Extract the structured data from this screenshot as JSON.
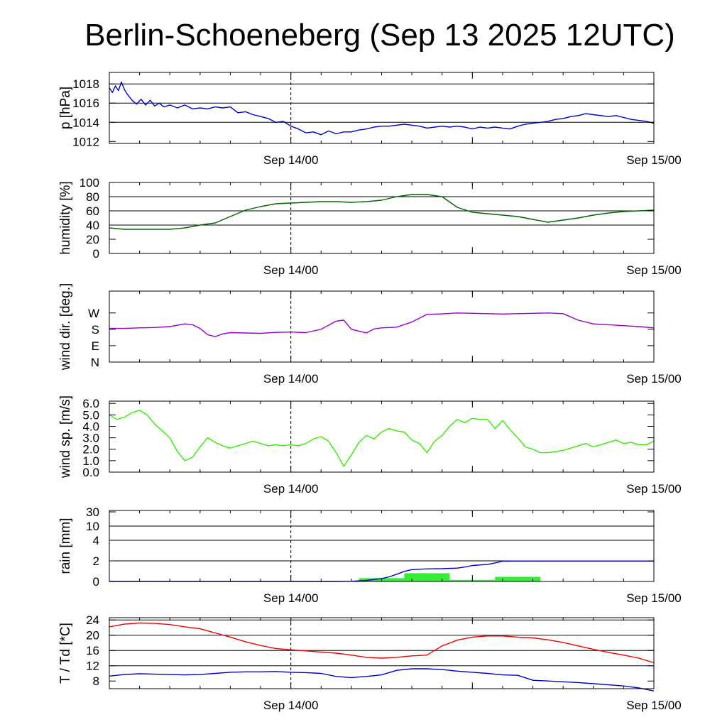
{
  "page": {
    "title": "Berlin-Schoeneberg (Sep 13 2025 12UTC)"
  },
  "chart_data": [
    {
      "id": "pressure",
      "type": "line",
      "ylabel": "p [hPa]",
      "ylim": [
        1011.8,
        1019.2
      ],
      "yticks": [
        1012,
        1014,
        1016,
        1018
      ],
      "ytick_labels": [
        "1012",
        "1014",
        "1016",
        "1018"
      ],
      "grid_lines": [
        1014,
        1016,
        1018
      ],
      "xlim": [
        0,
        36
      ],
      "x_unit": "hours since Sep 13 12UTC",
      "xticks": [
        12,
        36
      ],
      "xtick_labels": [
        "Sep 14/00",
        "Sep 15/00"
      ],
      "dashed_x": 12,
      "series": [
        {
          "color": "#0000cc",
          "x": [
            0,
            0.2,
            0.4,
            0.6,
            0.8,
            1.0,
            1.2,
            1.5,
            1.8,
            2.1,
            2.4,
            2.7,
            3.0,
            3.3,
            3.6,
            4.0,
            4.5,
            5.0,
            5.5,
            6.0,
            6.5,
            7.0,
            7.5,
            8.0,
            8.5,
            9.0,
            9.5,
            10.0,
            10.5,
            11.0,
            11.5,
            12.0,
            12.5,
            13.0,
            13.5,
            14.0,
            14.5,
            15.0,
            15.5,
            16.0,
            16.5,
            17.0,
            17.5,
            18.0,
            18.5,
            19.0,
            19.5,
            20.0,
            20.5,
            21.0,
            21.5,
            22.0,
            22.5,
            23.0,
            23.5,
            24.0,
            24.5,
            25.0,
            25.5,
            26.0,
            26.5,
            27.0,
            27.5,
            28.0,
            28.5,
            29.0,
            29.5,
            30.0,
            30.5,
            31.0,
            31.5,
            32.0,
            32.5,
            33.0,
            33.5,
            34.0,
            34.5,
            35.0,
            35.5,
            36.0
          ],
          "y": [
            1017.6,
            1017.1,
            1017.8,
            1017.3,
            1018.2,
            1017.4,
            1016.9,
            1016.3,
            1015.9,
            1016.4,
            1015.8,
            1016.3,
            1015.7,
            1016.0,
            1015.6,
            1015.8,
            1015.5,
            1015.8,
            1015.4,
            1015.5,
            1015.4,
            1015.6,
            1015.5,
            1015.6,
            1015.0,
            1015.1,
            1014.8,
            1014.6,
            1014.4,
            1014.0,
            1014.1,
            1013.6,
            1013.3,
            1012.9,
            1013.0,
            1012.7,
            1013.1,
            1012.8,
            1013.0,
            1013.0,
            1013.2,
            1013.3,
            1013.5,
            1013.6,
            1013.6,
            1013.7,
            1013.8,
            1013.7,
            1013.6,
            1013.4,
            1013.5,
            1013.6,
            1013.5,
            1013.6,
            1013.5,
            1013.3,
            1013.5,
            1013.4,
            1013.5,
            1013.4,
            1013.3,
            1013.6,
            1013.8,
            1013.9,
            1014.0,
            1014.1,
            1014.3,
            1014.4,
            1014.6,
            1014.7,
            1014.9,
            1014.8,
            1014.7,
            1014.6,
            1014.7,
            1014.5,
            1014.3,
            1014.2,
            1014.1,
            1013.9
          ]
        }
      ]
    },
    {
      "id": "humidity",
      "type": "line",
      "ylabel": "humidity [%]",
      "ylim": [
        0,
        100
      ],
      "yticks": [
        0,
        20,
        40,
        60,
        80,
        100
      ],
      "ytick_labels": [
        "0",
        "20",
        "40",
        "60",
        "80",
        "100"
      ],
      "grid_lines": [
        40,
        60,
        80
      ],
      "xlim": [
        0,
        36
      ],
      "xticks": [
        12,
        36
      ],
      "xtick_labels": [
        "Sep 14/00",
        "Sep 15/00"
      ],
      "dashed_x": 12,
      "series": [
        {
          "color": "#006400",
          "x": [
            0,
            1,
            2,
            3,
            4,
            5,
            6,
            7,
            8,
            9,
            10,
            11,
            12,
            13,
            14,
            15,
            16,
            17,
            18,
            19,
            20,
            21,
            22,
            23,
            24,
            25,
            26,
            27,
            28,
            29,
            30,
            31,
            32,
            33,
            34,
            35,
            36
          ],
          "y": [
            36,
            34,
            34,
            34,
            34,
            36,
            40,
            43,
            52,
            61,
            66,
            70,
            71,
            72,
            73,
            73,
            72,
            73,
            75,
            80,
            83,
            83,
            80,
            65,
            58,
            56,
            54,
            52,
            48,
            44,
            47,
            50,
            54,
            57,
            59,
            60,
            61
          ]
        }
      ]
    },
    {
      "id": "wind_direction",
      "type": "line",
      "ylabel": "wind dir. [deg.]",
      "ylim": [
        0,
        390
      ],
      "yticks": [
        0,
        90,
        180,
        270
      ],
      "ytick_labels": [
        "N",
        "E",
        "S",
        "W"
      ],
      "grid_lines": [],
      "xlim": [
        0,
        36
      ],
      "xticks": [
        12,
        36
      ],
      "xtick_labels": [
        "Sep 14/00",
        "Sep 15/00"
      ],
      "dashed_x": 12,
      "series": [
        {
          "color": "#9900cc",
          "x": [
            0,
            1,
            2,
            3,
            4,
            5,
            5.5,
            6,
            6.5,
            7,
            7.5,
            8,
            9,
            10,
            11,
            12,
            13,
            14,
            15,
            15.5,
            16,
            16.5,
            17,
            17.5,
            18,
            19,
            20,
            21,
            22,
            23,
            24,
            25,
            26,
            27,
            28,
            29,
            30,
            31,
            32,
            33,
            34,
            35,
            36
          ],
          "y": [
            185,
            185,
            188,
            190,
            195,
            210,
            205,
            185,
            150,
            140,
            155,
            162,
            160,
            158,
            163,
            165,
            162,
            180,
            225,
            230,
            180,
            170,
            160,
            182,
            188,
            192,
            220,
            262,
            265,
            270,
            268,
            266,
            264,
            266,
            268,
            270,
            266,
            230,
            210,
            205,
            200,
            195,
            188
          ]
        }
      ]
    },
    {
      "id": "wind_speed",
      "type": "line",
      "ylabel": "wind sp. [m/s]",
      "ylim": [
        0,
        6.2
      ],
      "yticks": [
        0.0,
        1.0,
        2.0,
        3.0,
        4.0,
        5.0,
        6.0
      ],
      "ytick_labels": [
        "0.0",
        "1.0",
        "2.0",
        "3.0",
        "4.0",
        "5.0",
        "6.0"
      ],
      "grid_lines": [],
      "xlim": [
        0,
        36
      ],
      "xticks": [
        12,
        36
      ],
      "xtick_labels": [
        "Sep 14/00",
        "Sep 15/00"
      ],
      "dashed_x": 12,
      "series": [
        {
          "color": "#33ee00",
          "x": [
            0,
            0.5,
            1,
            1.5,
            2,
            2.5,
            3,
            3.5,
            4,
            4.5,
            5,
            5.5,
            6,
            6.5,
            7,
            7.5,
            8,
            8.5,
            9,
            9.5,
            10,
            10.5,
            11,
            11.5,
            12,
            12.5,
            13,
            13.5,
            14,
            14.5,
            15,
            15.5,
            16,
            16.5,
            17,
            17.5,
            18,
            18.5,
            19,
            19.5,
            20,
            20.5,
            21,
            21.5,
            22,
            22.5,
            23,
            23.5,
            24,
            24.5,
            25,
            25.5,
            26,
            26.5,
            27,
            27.5,
            28,
            28.5,
            29,
            29.5,
            30,
            30.5,
            31,
            31.5,
            32,
            32.5,
            33,
            33.5,
            34,
            34.5,
            35,
            35.5,
            36
          ],
          "y": [
            5.0,
            4.6,
            4.8,
            5.2,
            5.4,
            5.0,
            4.2,
            3.6,
            3.0,
            1.8,
            1.0,
            1.3,
            2.2,
            3.0,
            2.6,
            2.3,
            2.1,
            2.3,
            2.5,
            2.7,
            2.5,
            2.3,
            2.4,
            2.3,
            2.4,
            2.3,
            2.5,
            2.9,
            3.1,
            2.7,
            1.7,
            0.5,
            1.5,
            2.6,
            3.2,
            2.9,
            3.5,
            3.8,
            3.6,
            3.5,
            2.8,
            2.5,
            1.7,
            2.7,
            3.2,
            4.0,
            4.6,
            4.3,
            4.7,
            4.6,
            4.6,
            3.8,
            4.5,
            3.7,
            3.0,
            2.2,
            2.0,
            1.7,
            1.7,
            1.8,
            1.9,
            2.1,
            2.3,
            2.5,
            2.2,
            2.4,
            2.6,
            2.8,
            2.5,
            2.6,
            2.4,
            2.4,
            2.7
          ]
        }
      ]
    },
    {
      "id": "rain",
      "type": "bar+line",
      "ylabel": "rain [mm]",
      "ylim": [
        0,
        36
      ],
      "yticks": [
        0,
        2,
        4,
        10,
        30
      ],
      "ytick_labels": [
        "0",
        "2",
        "4",
        "10",
        "30"
      ],
      "grid_lines": [
        2,
        4,
        10
      ],
      "y_scale": "nonlinear",
      "xlim": [
        0,
        36
      ],
      "xticks": [
        12,
        36
      ],
      "xtick_labels": [
        "Sep 14/00",
        "Sep 15/00"
      ],
      "dashed_x": 12,
      "bars": {
        "color": "#33ee33",
        "items": [
          {
            "x0": 16.5,
            "x1": 19.5,
            "value": 0.32
          },
          {
            "x0": 19.5,
            "x1": 22.5,
            "value": 0.8
          },
          {
            "x0": 22.5,
            "x1": 25.5,
            "value": 0.15
          },
          {
            "x0": 25.5,
            "x1": 28.5,
            "value": 0.45
          }
        ]
      },
      "series": [
        {
          "color": "#0000cc",
          "x": [
            0,
            15,
            16,
            17,
            18,
            18.5,
            19,
            19.5,
            20,
            21,
            22,
            23,
            23.5,
            24,
            25,
            25.5,
            26,
            27,
            30,
            33,
            36
          ],
          "y": [
            0,
            0,
            0.02,
            0.1,
            0.28,
            0.45,
            0.7,
            0.98,
            1.15,
            1.22,
            1.24,
            1.3,
            1.4,
            1.55,
            1.65,
            1.8,
            1.97,
            1.98,
            1.98,
            1.98,
            1.98
          ]
        }
      ]
    },
    {
      "id": "temperature",
      "type": "line",
      "ylabel": "T / Td [*C]",
      "ylim": [
        6,
        24.6
      ],
      "yticks": [
        8,
        12,
        16,
        20,
        24
      ],
      "ytick_labels": [
        "8",
        "12",
        "16",
        "20",
        "24"
      ],
      "grid_lines": [
        12,
        16,
        20,
        24
      ],
      "xlim": [
        0,
        36
      ],
      "xticks": [
        12,
        36
      ],
      "xtick_labels": [
        "Sep 14/00",
        "Sep 15/00"
      ],
      "dashed_x": 12,
      "series": [
        {
          "name": "T",
          "color": "#ee0000",
          "x": [
            0,
            1,
            2,
            3,
            4,
            5,
            6,
            7,
            8,
            9,
            10,
            11,
            12,
            13,
            14,
            15,
            16,
            17,
            18,
            19,
            20,
            21,
            22,
            23,
            24,
            25,
            26,
            27,
            28,
            29,
            30,
            31,
            32,
            33,
            34,
            35,
            36
          ],
          "y": [
            22.2,
            22.9,
            23.2,
            23.1,
            22.8,
            22.2,
            21.7,
            20.6,
            19.5,
            18.3,
            17.3,
            16.5,
            16.2,
            15.9,
            15.6,
            15.3,
            14.8,
            14.2,
            14.0,
            14.2,
            14.6,
            14.8,
            17.2,
            18.7,
            19.5,
            19.8,
            19.8,
            19.5,
            19.3,
            18.8,
            18.1,
            17.2,
            16.3,
            15.5,
            14.8,
            14.0,
            12.8
          ]
        },
        {
          "name": "Td",
          "color": "#0000cc",
          "x": [
            0,
            1,
            2,
            3,
            4,
            5,
            6,
            7,
            8,
            9,
            10,
            11,
            12,
            13,
            14,
            15,
            16,
            17,
            18,
            19,
            20,
            21,
            22,
            23,
            24,
            25,
            26,
            27,
            28,
            29,
            30,
            31,
            32,
            33,
            34,
            35,
            36
          ],
          "y": [
            9.3,
            9.7,
            9.9,
            9.8,
            9.7,
            9.6,
            9.7,
            10.0,
            10.3,
            10.4,
            10.4,
            10.5,
            10.3,
            10.2,
            10.0,
            9.2,
            8.9,
            9.2,
            9.6,
            10.8,
            11.2,
            11.2,
            11.0,
            10.6,
            10.3,
            10.0,
            9.6,
            9.5,
            8.2,
            8.0,
            7.8,
            7.6,
            7.3,
            7.0,
            6.7,
            6.2,
            5.4
          ]
        }
      ]
    }
  ]
}
